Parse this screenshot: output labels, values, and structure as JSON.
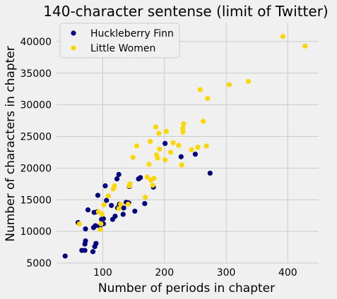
{
  "chart_data": {
    "type": "scatter",
    "title": "140-character sentense (limit of Twitter)",
    "xlabel": "Number of periods in chapter",
    "ylabel": "Number of characters in chapter",
    "xlim": [
      25,
      450
    ],
    "ylim": [
      5000,
      43000
    ],
    "xticks": [
      100,
      200,
      300,
      400
    ],
    "yticks": [
      5000,
      10000,
      15000,
      20000,
      25000,
      30000,
      35000,
      40000
    ],
    "grid": true,
    "legend_position": "top-left",
    "series": [
      {
        "name": "Huckleberry Finn",
        "color": "#000080",
        "points": [
          [
            39,
            6100
          ],
          [
            66,
            7000
          ],
          [
            71,
            7000
          ],
          [
            71,
            8000
          ],
          [
            72,
            8500
          ],
          [
            84,
            6800
          ],
          [
            87,
            7600
          ],
          [
            89,
            8100
          ],
          [
            60,
            11400
          ],
          [
            72,
            10400
          ],
          [
            76,
            13400
          ],
          [
            85,
            10600
          ],
          [
            86,
            13000
          ],
          [
            88,
            10900
          ],
          [
            91,
            13100
          ],
          [
            92,
            15700
          ],
          [
            95,
            10800
          ],
          [
            98,
            11900
          ],
          [
            101,
            11200
          ],
          [
            101,
            12000
          ],
          [
            104,
            17200
          ],
          [
            106,
            14900
          ],
          [
            114,
            14100
          ],
          [
            116,
            11900
          ],
          [
            120,
            12400
          ],
          [
            123,
            18300
          ],
          [
            124,
            13700
          ],
          [
            126,
            19000
          ],
          [
            127,
            14300
          ],
          [
            133,
            12700
          ],
          [
            134,
            13700
          ],
          [
            138,
            14600
          ],
          [
            142,
            14500
          ],
          [
            143,
            17100
          ],
          [
            152,
            13200
          ],
          [
            158,
            18300
          ],
          [
            161,
            18500
          ],
          [
            168,
            14400
          ],
          [
            182,
            17000
          ],
          [
            201,
            23900
          ],
          [
            227,
            21800
          ],
          [
            250,
            22200
          ],
          [
            274,
            19200
          ]
        ]
      },
      {
        "name": "Little Women",
        "color": "#ffd700",
        "points": [
          [
            62,
            11200
          ],
          [
            93,
            13100
          ],
          [
            96,
            10300
          ],
          [
            97,
            11200
          ],
          [
            99,
            12700
          ],
          [
            102,
            14200
          ],
          [
            109,
            15600
          ],
          [
            117,
            16700
          ],
          [
            119,
            17200
          ],
          [
            126,
            13600
          ],
          [
            129,
            14300
          ],
          [
            141,
            14300
          ],
          [
            143,
            17200
          ],
          [
            144,
            17500
          ],
          [
            149,
            21700
          ],
          [
            155,
            23500
          ],
          [
            169,
            15400
          ],
          [
            172,
            18600
          ],
          [
            175,
            20600
          ],
          [
            177,
            24200
          ],
          [
            178,
            18100
          ],
          [
            181,
            17300
          ],
          [
            183,
            18400
          ],
          [
            186,
            26500
          ],
          [
            187,
            22100
          ],
          [
            189,
            21600
          ],
          [
            191,
            25500
          ],
          [
            192,
            23000
          ],
          [
            201,
            21300
          ],
          [
            203,
            25800
          ],
          [
            210,
            22500
          ],
          [
            214,
            24000
          ],
          [
            223,
            23600
          ],
          [
            228,
            20500
          ],
          [
            230,
            25700
          ],
          [
            230,
            26300
          ],
          [
            231,
            27000
          ],
          [
            244,
            22900
          ],
          [
            254,
            23300
          ],
          [
            258,
            32400
          ],
          [
            263,
            27400
          ],
          [
            268,
            23500
          ],
          [
            270,
            31000
          ],
          [
            305,
            33200
          ],
          [
            336,
            33700
          ],
          [
            392,
            40800
          ],
          [
            428,
            39300
          ]
        ]
      }
    ]
  }
}
